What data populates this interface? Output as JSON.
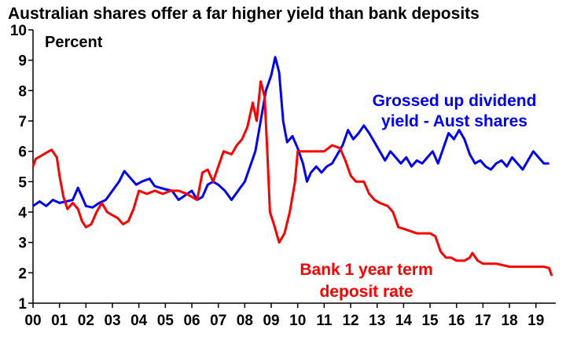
{
  "chart_data": {
    "type": "line",
    "title": "Australian shares offer a far higher yield than bank deposits",
    "unit_label": "Percent",
    "ylim": [
      1,
      10
    ],
    "yticks": [
      1,
      2,
      3,
      4,
      5,
      6,
      7,
      8,
      9,
      10
    ],
    "xlim": [
      2000.0,
      2019.75
    ],
    "xtick_labels": [
      "00",
      "01",
      "02",
      "03",
      "04",
      "05",
      "06",
      "07",
      "08",
      "09",
      "10",
      "11",
      "12",
      "13",
      "14",
      "15",
      "16",
      "17",
      "18",
      "19"
    ],
    "grid": false,
    "series": [
      {
        "name": "Grossed up dividend yield - Aust shares",
        "label_lines": [
          "Grossed up dividend",
          "yield - Aust shares"
        ],
        "color": "#0000ff",
        "points": [
          [
            2000.0,
            4.2
          ],
          [
            2000.25,
            4.35
          ],
          [
            2000.5,
            4.2
          ],
          [
            2000.75,
            4.4
          ],
          [
            2001.0,
            4.3
          ],
          [
            2001.25,
            4.35
          ],
          [
            2001.5,
            4.4
          ],
          [
            2001.7,
            4.8
          ],
          [
            2001.9,
            4.4
          ],
          [
            2002.0,
            4.2
          ],
          [
            2002.25,
            4.15
          ],
          [
            2002.5,
            4.3
          ],
          [
            2002.75,
            4.4
          ],
          [
            2003.0,
            4.7
          ],
          [
            2003.25,
            5.0
          ],
          [
            2003.45,
            5.35
          ],
          [
            2003.7,
            5.1
          ],
          [
            2003.9,
            4.9
          ],
          [
            2004.1,
            5.0
          ],
          [
            2004.4,
            5.1
          ],
          [
            2004.6,
            4.85
          ],
          [
            2004.8,
            4.8
          ],
          [
            2005.0,
            4.75
          ],
          [
            2005.25,
            4.7
          ],
          [
            2005.5,
            4.4
          ],
          [
            2005.75,
            4.55
          ],
          [
            2006.0,
            4.7
          ],
          [
            2006.2,
            4.4
          ],
          [
            2006.4,
            4.5
          ],
          [
            2006.6,
            4.9
          ],
          [
            2006.8,
            5.0
          ],
          [
            2007.0,
            4.9
          ],
          [
            2007.25,
            4.7
          ],
          [
            2007.5,
            4.4
          ],
          [
            2007.75,
            4.7
          ],
          [
            2008.0,
            5.0
          ],
          [
            2008.2,
            5.5
          ],
          [
            2008.4,
            6.0
          ],
          [
            2008.6,
            7.0
          ],
          [
            2008.8,
            8.0
          ],
          [
            2009.0,
            8.5
          ],
          [
            2009.15,
            9.1
          ],
          [
            2009.3,
            8.6
          ],
          [
            2009.45,
            7.0
          ],
          [
            2009.6,
            6.3
          ],
          [
            2009.8,
            6.5
          ],
          [
            2010.0,
            6.1
          ],
          [
            2010.2,
            5.6
          ],
          [
            2010.35,
            5.0
          ],
          [
            2010.5,
            5.3
          ],
          [
            2010.7,
            5.5
          ],
          [
            2010.9,
            5.3
          ],
          [
            2011.1,
            5.5
          ],
          [
            2011.3,
            5.6
          ],
          [
            2011.5,
            5.9
          ],
          [
            2011.7,
            6.2
          ],
          [
            2011.9,
            6.7
          ],
          [
            2012.1,
            6.4
          ],
          [
            2012.3,
            6.6
          ],
          [
            2012.5,
            6.85
          ],
          [
            2012.7,
            6.6
          ],
          [
            2012.9,
            6.3
          ],
          [
            2013.1,
            6.0
          ],
          [
            2013.3,
            5.7
          ],
          [
            2013.5,
            6.0
          ],
          [
            2013.7,
            5.8
          ],
          [
            2013.9,
            5.6
          ],
          [
            2014.1,
            5.8
          ],
          [
            2014.3,
            5.5
          ],
          [
            2014.5,
            5.7
          ],
          [
            2014.7,
            5.6
          ],
          [
            2014.9,
            5.8
          ],
          [
            2015.1,
            6.0
          ],
          [
            2015.3,
            5.6
          ],
          [
            2015.5,
            6.1
          ],
          [
            2015.7,
            6.6
          ],
          [
            2015.9,
            6.4
          ],
          [
            2016.1,
            6.7
          ],
          [
            2016.3,
            6.4
          ],
          [
            2016.5,
            5.9
          ],
          [
            2016.7,
            5.6
          ],
          [
            2016.9,
            5.7
          ],
          [
            2017.1,
            5.5
          ],
          [
            2017.3,
            5.4
          ],
          [
            2017.5,
            5.6
          ],
          [
            2017.7,
            5.7
          ],
          [
            2017.9,
            5.5
          ],
          [
            2018.1,
            5.8
          ],
          [
            2018.3,
            5.6
          ],
          [
            2018.5,
            5.4
          ],
          [
            2018.7,
            5.7
          ],
          [
            2018.9,
            6.0
          ],
          [
            2019.1,
            5.8
          ],
          [
            2019.3,
            5.6
          ],
          [
            2019.5,
            5.6
          ]
        ]
      },
      {
        "name": "Bank 1 year term deposit rate",
        "label_lines": [
          "Bank 1 year term",
          "deposit rate"
        ],
        "color": "#ff0000",
        "points": [
          [
            2000.0,
            5.5
          ],
          [
            2000.1,
            5.75
          ],
          [
            2000.3,
            5.85
          ],
          [
            2000.5,
            5.95
          ],
          [
            2000.7,
            6.05
          ],
          [
            2000.9,
            5.8
          ],
          [
            2001.0,
            5.2
          ],
          [
            2001.15,
            4.5
          ],
          [
            2001.3,
            4.1
          ],
          [
            2001.5,
            4.3
          ],
          [
            2001.7,
            4.1
          ],
          [
            2001.85,
            3.7
          ],
          [
            2002.0,
            3.5
          ],
          [
            2002.2,
            3.6
          ],
          [
            2002.4,
            4.0
          ],
          [
            2002.6,
            4.3
          ],
          [
            2002.8,
            4.0
          ],
          [
            2003.0,
            3.9
          ],
          [
            2003.2,
            3.8
          ],
          [
            2003.4,
            3.6
          ],
          [
            2003.6,
            3.7
          ],
          [
            2003.8,
            4.1
          ],
          [
            2004.0,
            4.7
          ],
          [
            2004.3,
            4.6
          ],
          [
            2004.6,
            4.7
          ],
          [
            2004.9,
            4.6
          ],
          [
            2005.2,
            4.7
          ],
          [
            2005.5,
            4.7
          ],
          [
            2005.8,
            4.6
          ],
          [
            2006.0,
            4.5
          ],
          [
            2006.2,
            4.4
          ],
          [
            2006.4,
            5.3
          ],
          [
            2006.6,
            5.4
          ],
          [
            2006.8,
            5.0
          ],
          [
            2007.0,
            5.5
          ],
          [
            2007.2,
            6.0
          ],
          [
            2007.5,
            5.9
          ],
          [
            2007.7,
            6.2
          ],
          [
            2007.9,
            6.4
          ],
          [
            2008.1,
            6.8
          ],
          [
            2008.3,
            7.6
          ],
          [
            2008.45,
            7.0
          ],
          [
            2008.6,
            8.3
          ],
          [
            2008.75,
            7.8
          ],
          [
            2008.85,
            6.0
          ],
          [
            2008.95,
            4.0
          ],
          [
            2009.1,
            3.6
          ],
          [
            2009.3,
            3.0
          ],
          [
            2009.5,
            3.3
          ],
          [
            2009.7,
            4.0
          ],
          [
            2009.9,
            5.0
          ],
          [
            2010.0,
            6.0
          ],
          [
            2010.5,
            6.0
          ],
          [
            2011.0,
            6.0
          ],
          [
            2011.3,
            6.2
          ],
          [
            2011.6,
            6.1
          ],
          [
            2011.8,
            5.7
          ],
          [
            2012.0,
            5.2
          ],
          [
            2012.2,
            5.0
          ],
          [
            2012.5,
            5.0
          ],
          [
            2012.7,
            4.6
          ],
          [
            2012.9,
            4.4
          ],
          [
            2013.1,
            4.3
          ],
          [
            2013.4,
            4.2
          ],
          [
            2013.6,
            4.0
          ],
          [
            2013.8,
            3.5
          ],
          [
            2014.0,
            3.45
          ],
          [
            2014.5,
            3.3
          ],
          [
            2015.0,
            3.3
          ],
          [
            2015.2,
            3.2
          ],
          [
            2015.4,
            2.7
          ],
          [
            2015.6,
            2.5
          ],
          [
            2015.8,
            2.5
          ],
          [
            2016.0,
            2.4
          ],
          [
            2016.3,
            2.4
          ],
          [
            2016.5,
            2.5
          ],
          [
            2016.6,
            2.65
          ],
          [
            2016.8,
            2.4
          ],
          [
            2017.0,
            2.3
          ],
          [
            2017.5,
            2.3
          ],
          [
            2018.0,
            2.2
          ],
          [
            2018.5,
            2.2
          ],
          [
            2019.0,
            2.2
          ],
          [
            2019.3,
            2.2
          ],
          [
            2019.5,
            2.15
          ],
          [
            2019.6,
            1.9
          ]
        ]
      }
    ]
  }
}
